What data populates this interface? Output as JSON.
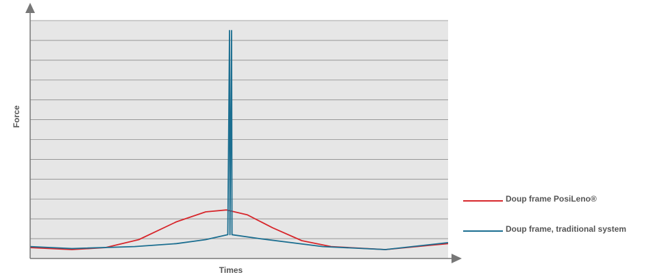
{
  "chart_data": {
    "type": "line",
    "xlabel": "Times",
    "ylabel": "Force",
    "xlim": [
      0,
      100
    ],
    "ylim": [
      0,
      12
    ],
    "grid": true,
    "legend_position": "right",
    "series": [
      {
        "name": "Doup frame PosiLeno®",
        "color": "#d7262b",
        "points": [
          [
            0,
            0.55
          ],
          [
            10,
            0.45
          ],
          [
            18,
            0.55
          ],
          [
            26,
            0.95
          ],
          [
            35,
            1.85
          ],
          [
            42,
            2.35
          ],
          [
            47,
            2.45
          ],
          [
            52,
            2.2
          ],
          [
            58,
            1.55
          ],
          [
            65,
            0.9
          ],
          [
            72,
            0.6
          ],
          [
            85,
            0.45
          ],
          [
            100,
            0.75
          ]
        ]
      },
      {
        "name": "Doup frame, traditional system",
        "color": "#1b6e90",
        "points": [
          [
            0,
            0.6
          ],
          [
            10,
            0.5
          ],
          [
            25,
            0.6
          ],
          [
            35,
            0.75
          ],
          [
            42,
            0.95
          ],
          [
            47.3,
            1.2
          ],
          [
            47.7,
            11.5
          ],
          [
            47.8,
            1.2
          ],
          [
            48.2,
            11.5
          ],
          [
            48.3,
            1.2
          ],
          [
            55,
            1.0
          ],
          [
            70,
            0.6
          ],
          [
            85,
            0.45
          ],
          [
            100,
            0.8
          ]
        ]
      }
    ]
  }
}
